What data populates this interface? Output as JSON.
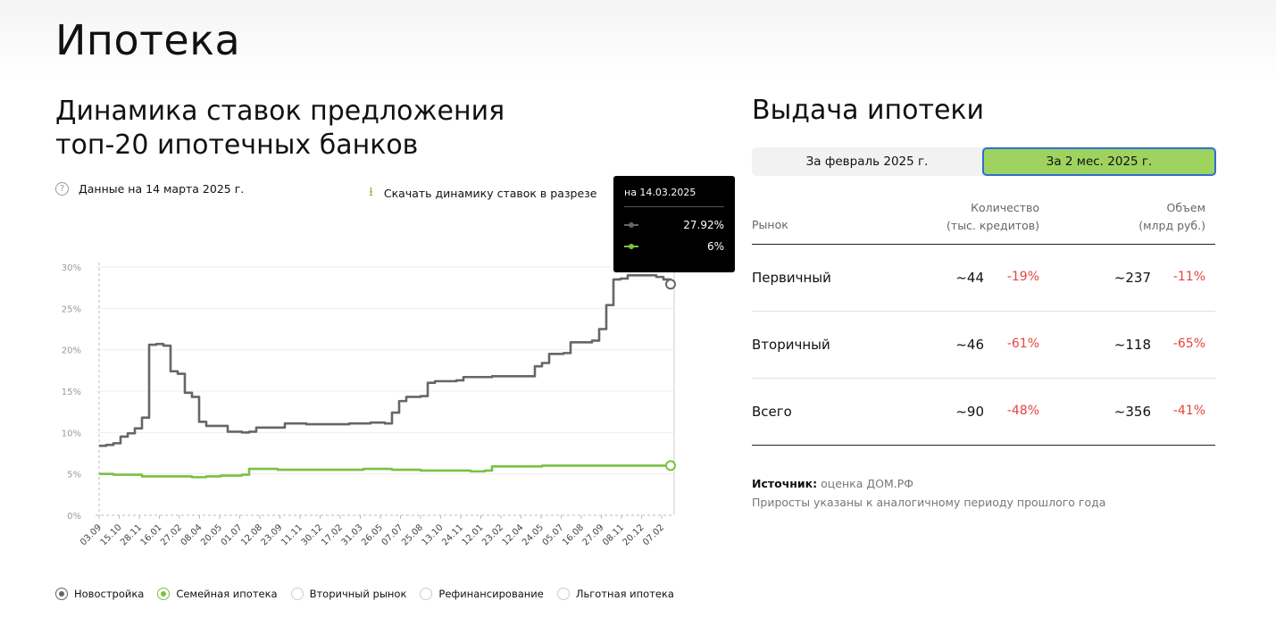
{
  "page_title": "Ипотека",
  "left": {
    "chart_title_line1": "Динамика ставок предложения",
    "chart_title_line2": "топ-20 ипотечных банков",
    "info_text": "Данные на 14 марта 2025 г.",
    "download_text": "Скачать динамику ставок в разрезе",
    "tooltip": {
      "date": "на 14.03.2025",
      "value1": "27.92%",
      "value2": "6%"
    },
    "legend": [
      {
        "label": "Новостройка",
        "active": true,
        "color": "#666666"
      },
      {
        "label": "Семейная ипотека",
        "active": true,
        "color": "#7ac143"
      },
      {
        "label": "Вторичный рынок",
        "active": false,
        "color": "#cccccc"
      },
      {
        "label": "Рефинансирование",
        "active": false,
        "color": "#cccccc"
      },
      {
        "label": "Льготная ипотека",
        "active": false,
        "color": "#cccccc"
      }
    ]
  },
  "chart_data": {
    "type": "line",
    "y_ticks": [
      "0%",
      "5%",
      "10%",
      "15%",
      "20%",
      "25%",
      "30%"
    ],
    "ylim": [
      0,
      30
    ],
    "x_tick_labels": [
      "03.09",
      "15.10",
      "28.11",
      "16.01",
      "27.02",
      "08.04",
      "20.05",
      "01.07",
      "12.08",
      "23.09",
      "11.11",
      "30.12",
      "17.02",
      "31.03",
      "26.05",
      "07.07",
      "25.08",
      "13.10",
      "24.11",
      "12.01",
      "23.02",
      "12.04",
      "24.05",
      "05.07",
      "16.08",
      "27.09",
      "08.11",
      "20.12",
      "07.02"
    ],
    "grid": true,
    "series": [
      {
        "color": "#666666",
        "points": [
          [
            0,
            8.4
          ],
          [
            1,
            8.5
          ],
          [
            2,
            8.7
          ],
          [
            3,
            9.5
          ],
          [
            4,
            9.9
          ],
          [
            5,
            10.5
          ],
          [
            6,
            11.8
          ],
          [
            7,
            20.6
          ],
          [
            8,
            20.7
          ],
          [
            9,
            20.5
          ],
          [
            10,
            17.4
          ],
          [
            11,
            17.1
          ],
          [
            12,
            14.8
          ],
          [
            13,
            14.3
          ],
          [
            14,
            11.3
          ],
          [
            15,
            10.8
          ],
          [
            17,
            10.8
          ],
          [
            18,
            10.1
          ],
          [
            20,
            10.0
          ],
          [
            21,
            10.1
          ],
          [
            22,
            10.6
          ],
          [
            25,
            10.6
          ],
          [
            26,
            11.1
          ],
          [
            29,
            11.0
          ],
          [
            33,
            11.0
          ],
          [
            35,
            11.1
          ],
          [
            38,
            11.2
          ],
          [
            40,
            11.1
          ],
          [
            41,
            12.4
          ],
          [
            42,
            13.8
          ],
          [
            43,
            14.3
          ],
          [
            44,
            14.3
          ],
          [
            45,
            14.4
          ],
          [
            46,
            16.0
          ],
          [
            47,
            16.2
          ],
          [
            50,
            16.3
          ],
          [
            51,
            16.7
          ],
          [
            54,
            16.7
          ],
          [
            55,
            16.8
          ],
          [
            60,
            16.8
          ],
          [
            61,
            18.0
          ],
          [
            62,
            18.4
          ],
          [
            63,
            19.5
          ],
          [
            65,
            19.6
          ],
          [
            66,
            20.9
          ],
          [
            67,
            20.9
          ],
          [
            69,
            21.1
          ],
          [
            70,
            22.5
          ],
          [
            71,
            25.4
          ],
          [
            72,
            28.5
          ],
          [
            73,
            28.6
          ],
          [
            74,
            29.0
          ],
          [
            77,
            29.0
          ],
          [
            78,
            28.8
          ],
          [
            79,
            28.5
          ],
          [
            80,
            27.92
          ]
        ]
      },
      {
        "color": "#7ac143",
        "points": [
          [
            0,
            5.0
          ],
          [
            2,
            4.9
          ],
          [
            5,
            4.9
          ],
          [
            6,
            4.7
          ],
          [
            10,
            4.7
          ],
          [
            13,
            4.6
          ],
          [
            15,
            4.7
          ],
          [
            17,
            4.8
          ],
          [
            19,
            4.8
          ],
          [
            20,
            4.9
          ],
          [
            21,
            5.6
          ],
          [
            22,
            5.6
          ],
          [
            25,
            5.5
          ],
          [
            32,
            5.5
          ],
          [
            37,
            5.6
          ],
          [
            41,
            5.5
          ],
          [
            44,
            5.5
          ],
          [
            45,
            5.4
          ],
          [
            49,
            5.4
          ],
          [
            52,
            5.3
          ],
          [
            54,
            5.4
          ],
          [
            55,
            5.9
          ],
          [
            60,
            5.9
          ],
          [
            62,
            6.0
          ],
          [
            80,
            6.0
          ]
        ]
      }
    ]
  },
  "right": {
    "title": "Выдача ипотеки",
    "tabs": [
      {
        "label": "За февраль 2025 г.",
        "active": false
      },
      {
        "label": "За 2 мес. 2025 г.",
        "active": true
      }
    ],
    "table": {
      "col_market": "Рынок",
      "col_qty_line1": "Количество",
      "col_qty_line2": "(тыс. кредитов)",
      "col_vol_line1": "Объем",
      "col_vol_line2": "(млрд руб.)",
      "rows": [
        {
          "market": "Первичный",
          "qty": "~44",
          "qty_delta": "-19%",
          "vol": "~237",
          "vol_delta": "-11%"
        },
        {
          "market": "Вторичный",
          "qty": "~46",
          "qty_delta": "-61%",
          "vol": "~118",
          "vol_delta": "-65%"
        },
        {
          "market": "Всего",
          "qty": "~90",
          "qty_delta": "-48%",
          "vol": "~356",
          "vol_delta": "-41%"
        }
      ]
    },
    "source_label": "Источник:",
    "source_value": "оценка ДОМ.РФ",
    "note": "Приросты указаны к аналогичному периоду прошлого года"
  }
}
